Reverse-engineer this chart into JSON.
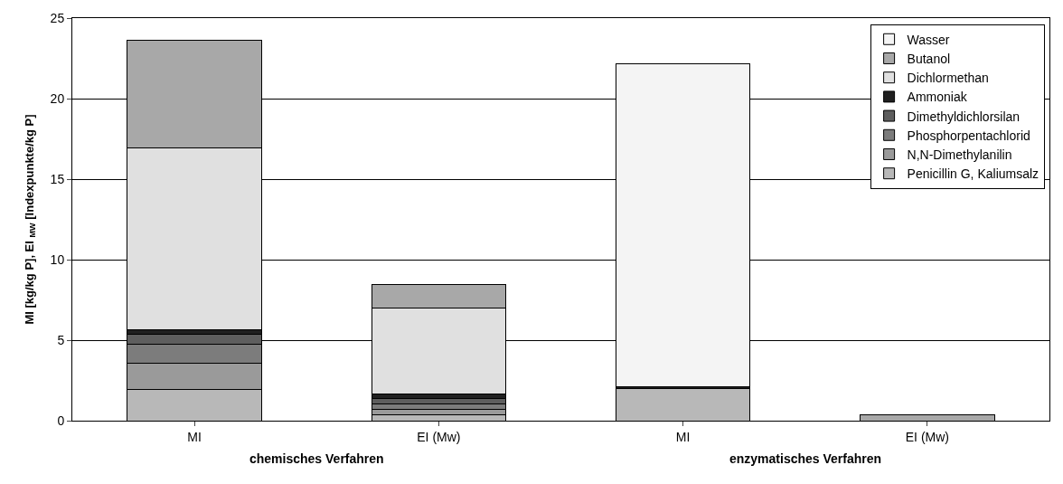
{
  "chart_data": {
    "type": "bar",
    "stacked": true,
    "ylabel": "MI [kg/kg P], EI $_{MW}$ [Indexpunkte/kg P]",
    "categories": [
      "MI",
      "EI (Mw)",
      "MI",
      "EI (Mw)"
    ],
    "series": [
      {
        "name": "Penicillin G, Kaliumsalz",
        "color": "#b8b8b8",
        "values": [
          1.93,
          0.35,
          2.0,
          null
        ]
      },
      {
        "name": "N,N-Dimethylanilin",
        "color": "#9a9a9a",
        "values": [
          1.63,
          0.35,
          null,
          null
        ]
      },
      {
        "name": "Phosphorpentachlorid",
        "color": "#7c7c7c",
        "values": [
          1.17,
          0.35,
          null,
          null
        ]
      },
      {
        "name": "Dimethyldichlorsilan",
        "color": "#5e5e5e",
        "values": [
          0.64,
          0.3,
          null,
          null
        ]
      },
      {
        "name": "Ammoniak",
        "color": "#202020",
        "values": [
          0.3,
          0.3,
          0.1,
          null
        ]
      },
      {
        "name": "Dichlormethan",
        "color": "#e0e0e0",
        "values": [
          11.27,
          5.35,
          null,
          null
        ]
      },
      {
        "name": "Butanol",
        "color": "#a8a8a8",
        "values": [
          6.71,
          1.45,
          null,
          0.35
        ]
      },
      {
        "name": "Wasser",
        "color": "#f4f4f4",
        "values": [
          null,
          null,
          20.04,
          null
        ]
      }
    ],
    "ylim": [
      0,
      25
    ],
    "yticks": [
      0,
      5,
      10,
      15,
      20,
      25
    ],
    "grid": "y",
    "legend": "top right",
    "annotations": [
      "chemisches Verfahren",
      "enzymatisches Verfahren"
    ]
  }
}
